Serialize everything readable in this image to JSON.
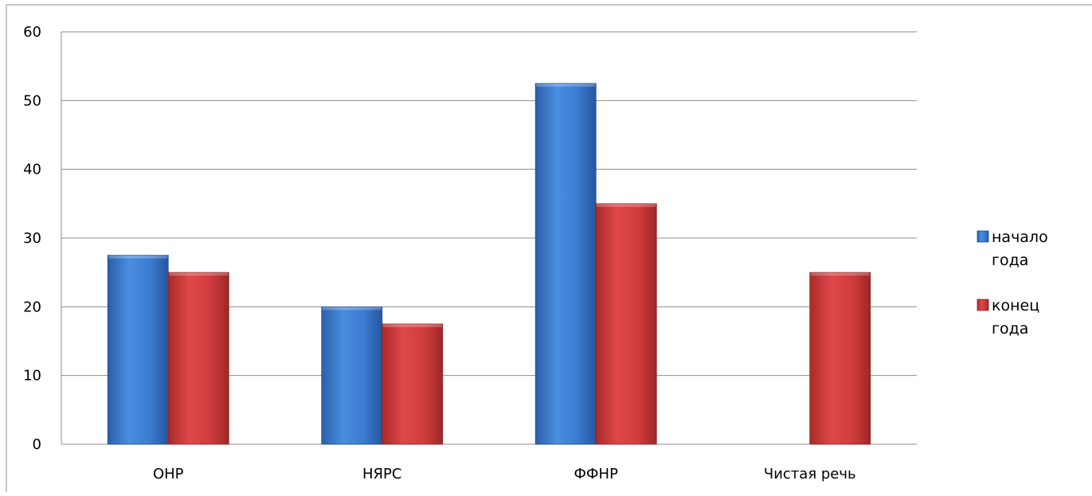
{
  "chart_data": {
    "type": "bar",
    "categories": [
      "ОНР",
      "НЯРС",
      "ФФНР",
      "Чистая речь"
    ],
    "series": [
      {
        "name": "начало года",
        "values": [
          27.5,
          20,
          52.5,
          0
        ],
        "color": "#3e7fd1"
      },
      {
        "name": "конец года",
        "values": [
          25,
          17.5,
          35,
          25
        ],
        "color": "#cf3b3b"
      }
    ],
    "ylim": [
      0,
      60
    ],
    "yticks": [
      "0",
      "10",
      "20",
      "30",
      "40",
      "50",
      "60"
    ],
    "grid": true,
    "legend": {
      "position": "right",
      "entries": [
        {
          "line1": "начало",
          "line2": "года"
        },
        {
          "line1": "конец",
          "line2": "года"
        }
      ]
    }
  }
}
